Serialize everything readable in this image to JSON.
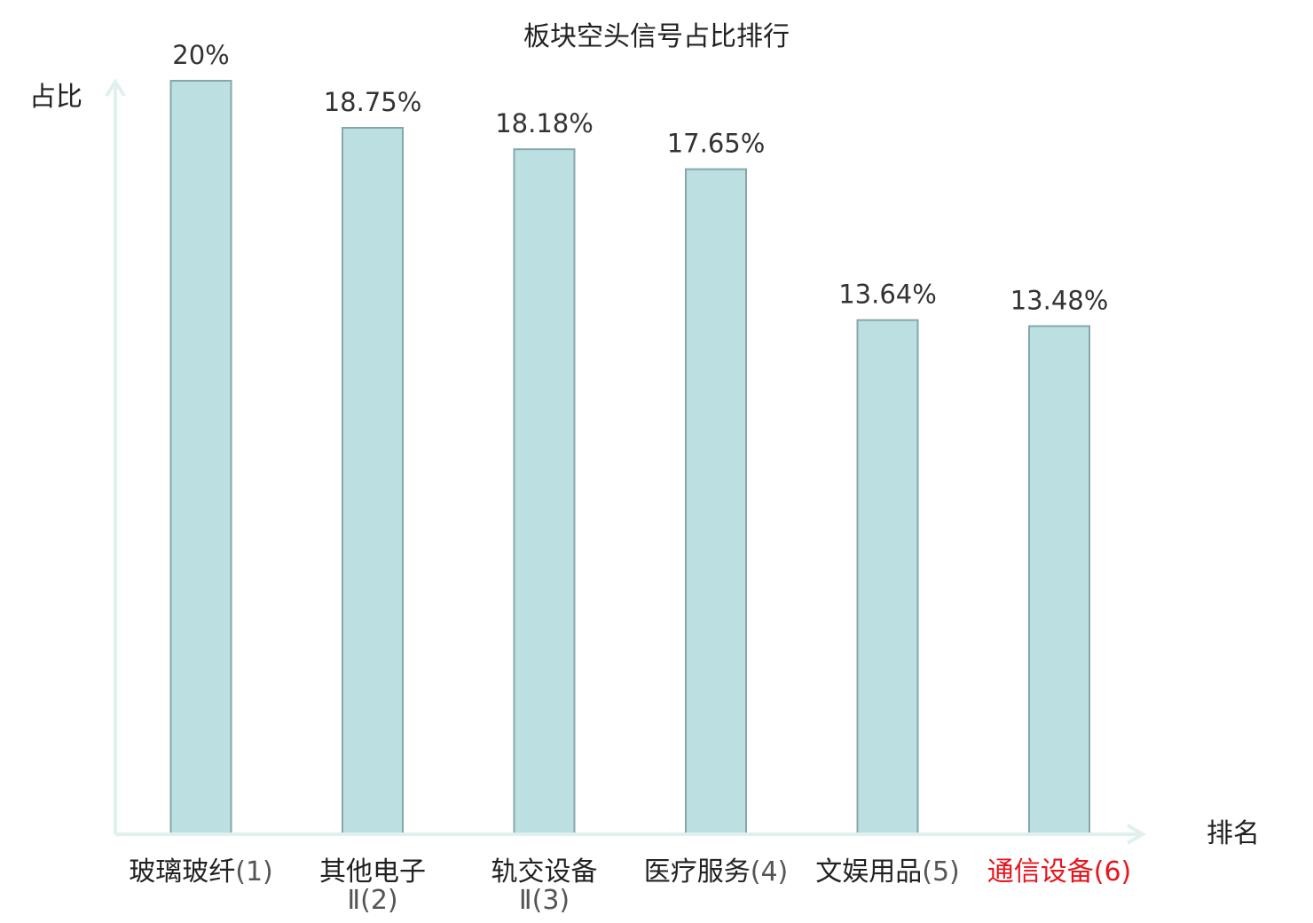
{
  "chart_data": {
    "type": "bar",
    "title": "板块空头信号占比排行",
    "ylabel": "占比",
    "xlabel": "排名",
    "ylim": [
      0,
      20
    ],
    "grid": false,
    "bar_color": "#bce0e2",
    "bar_edge_color": "#86a7a9",
    "axis_color": "#dff0ee",
    "highlight_color": "#e8141c",
    "categories": [
      {
        "name": "玻璃玻纤",
        "rank": "(1)",
        "highlight": false
      },
      {
        "name": "其他电子",
        "name_line2": "Ⅱ",
        "rank": "(2)",
        "highlight": false
      },
      {
        "name": "轨交设备",
        "name_line2": "Ⅱ",
        "rank": "(3)",
        "highlight": false
      },
      {
        "name": "医疗服务",
        "rank": "(4)",
        "highlight": false
      },
      {
        "name": "文娱用品",
        "rank": "(5)",
        "highlight": false
      },
      {
        "name": "通信设备",
        "rank": "(6)",
        "highlight": true
      }
    ],
    "values": [
      20,
      18.75,
      18.18,
      17.65,
      13.64,
      13.48
    ],
    "value_labels": [
      "20%",
      "18.75%",
      "18.18%",
      "17.65%",
      "13.64%",
      "13.48%"
    ]
  }
}
